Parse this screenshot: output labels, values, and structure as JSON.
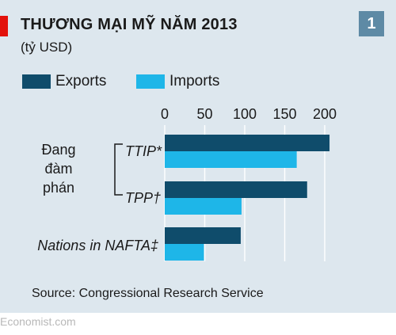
{
  "header": {
    "title": "THƯƠNG MẠI MỸ NĂM 2013",
    "subtitle": "(tỷ USD)",
    "badge": "1"
  },
  "footer": {
    "source": "Source: Congressional Research Service",
    "logo": "Economist.com"
  },
  "colors": {
    "exports": "#0f4c6b",
    "imports": "#1eb6e8",
    "background": "#dde7ee",
    "accent": "#e3120b"
  },
  "chart_data": {
    "type": "bar",
    "orientation": "horizontal",
    "group_label": [
      "Đang",
      "đàm",
      "phán"
    ],
    "categories": [
      "TTIP*",
      "TPP†",
      "Nations in NAFTA‡"
    ],
    "series": [
      {
        "name": "Exports",
        "values": [
          206,
          178,
          95
        ]
      },
      {
        "name": "Imports",
        "values": [
          165,
          96,
          49
        ]
      }
    ],
    "xticks": [
      0,
      50,
      100,
      150,
      200
    ],
    "xlim": [
      0,
      210
    ],
    "legend_position": "top-left",
    "grid": true
  }
}
